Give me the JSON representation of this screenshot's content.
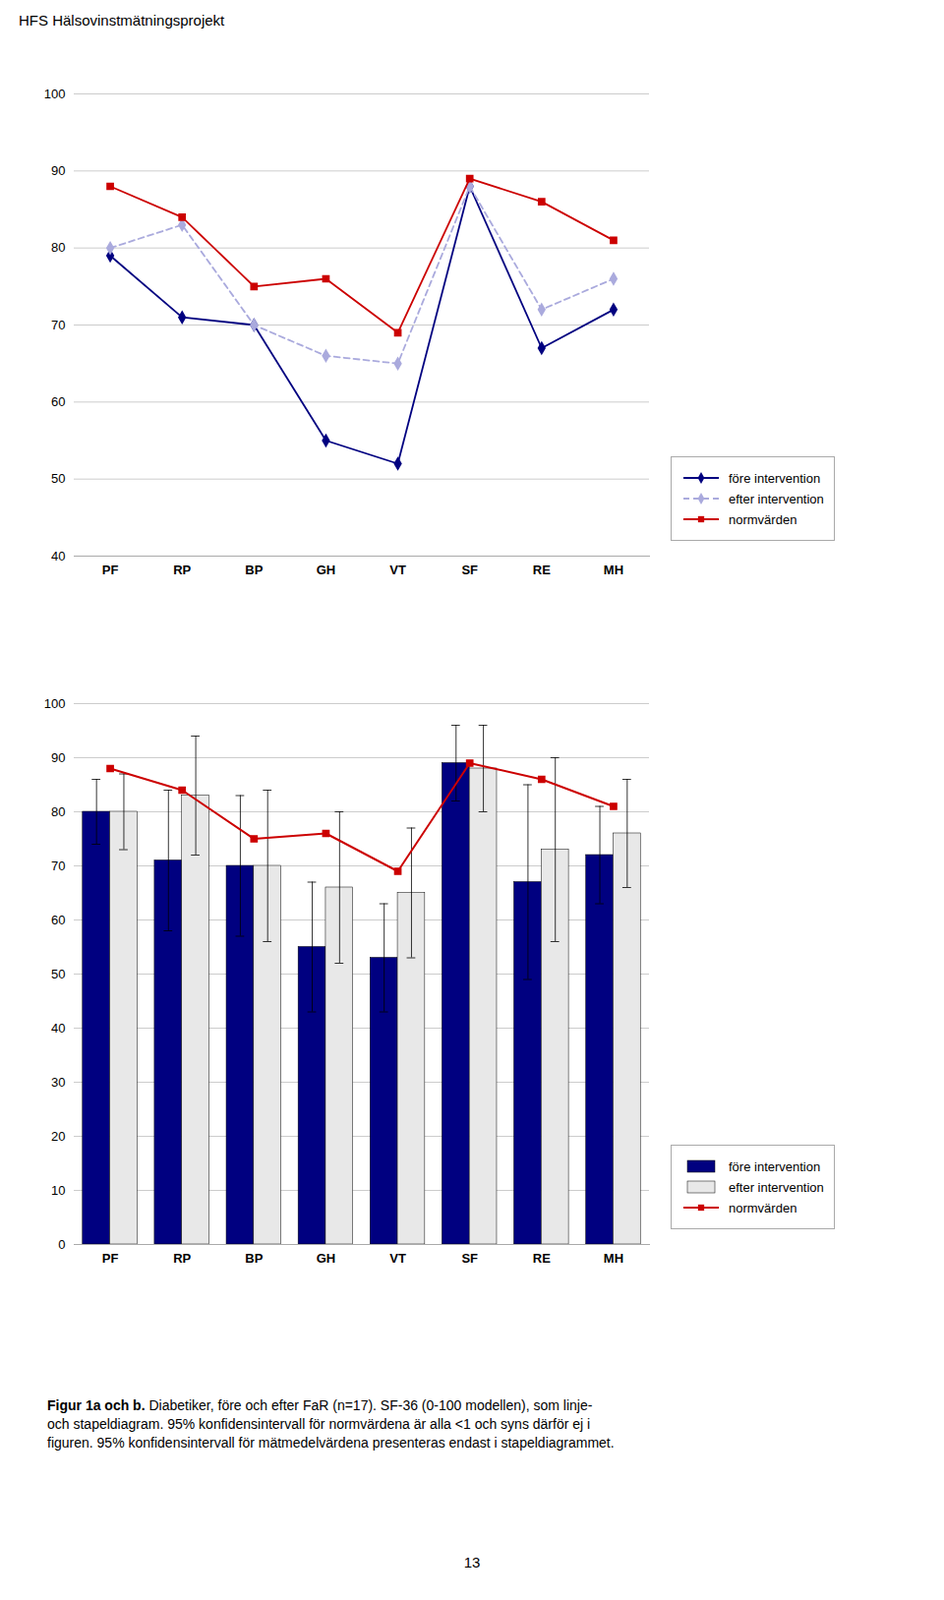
{
  "chart_data": [
    {
      "type": "line",
      "annotations": [
        "HFS Hälsovinstmätningsprojekt"
      ],
      "categories": [
        "PF",
        "RP",
        "BP",
        "GH",
        "VT",
        "SF",
        "RE",
        "MH"
      ],
      "series": [
        {
          "name": "före intervention",
          "color": "#000080",
          "marker": "diamond",
          "line_style": "solid",
          "values": [
            79,
            71,
            70,
            55,
            52,
            88,
            67,
            72
          ]
        },
        {
          "name": "efter intervention",
          "color": "#aaaadd",
          "marker": "diamond",
          "line_style": "dashed",
          "values": [
            80,
            83,
            70,
            66,
            65,
            88,
            72,
            76
          ]
        },
        {
          "name": "normvärden",
          "color": "#cc0000",
          "marker": "square",
          "line_style": "solid",
          "values": [
            88,
            84,
            75,
            76,
            69,
            89,
            86,
            81
          ]
        }
      ],
      "ylim": [
        40,
        100
      ],
      "yticks": [
        40,
        50,
        60,
        70,
        80,
        90,
        100
      ],
      "grid": true,
      "legend": "right"
    },
    {
      "type": "bar",
      "annotations": [
        "Figur 1a och b.",
        "Diabetiker, före och efter FaR (n=17). SF-36 (0-100 modellen), som linje-",
        "och stapeldiagram. 95% konfidensintervall för normvärdena är alla <1 och syns därför ej i",
        "figuren. 95% konfidensintervall för mätmedelvärdena presenteras endast i stapeldiagrammet.",
        "13"
      ],
      "categories": [
        "PF",
        "RP",
        "BP",
        "GH",
        "VT",
        "SF",
        "RE",
        "MH"
      ],
      "series": [
        {
          "name": "före intervention",
          "type": "bar",
          "color": "#000080",
          "values": [
            80,
            71,
            70,
            55,
            53,
            89,
            67,
            72
          ],
          "errors": [
            6,
            13,
            13,
            12,
            10,
            7,
            18,
            9
          ]
        },
        {
          "name": "efter intervention",
          "type": "bar",
          "color": "#e8e8e8",
          "values": [
            80,
            83,
            70,
            66,
            65,
            88,
            73,
            76
          ],
          "errors": [
            7,
            11,
            14,
            14,
            12,
            8,
            17,
            10
          ]
        },
        {
          "name": "normvärden",
          "type": "line",
          "color": "#cc0000",
          "marker": "square",
          "line_style": "solid",
          "values": [
            88,
            84,
            75,
            76,
            69,
            89,
            86,
            81
          ]
        }
      ],
      "ylim": [
        0,
        100
      ],
      "yticks": [
        0,
        10,
        20,
        30,
        40,
        50,
        60,
        70,
        80,
        90,
        100
      ],
      "grid": true,
      "legend": "right"
    }
  ]
}
